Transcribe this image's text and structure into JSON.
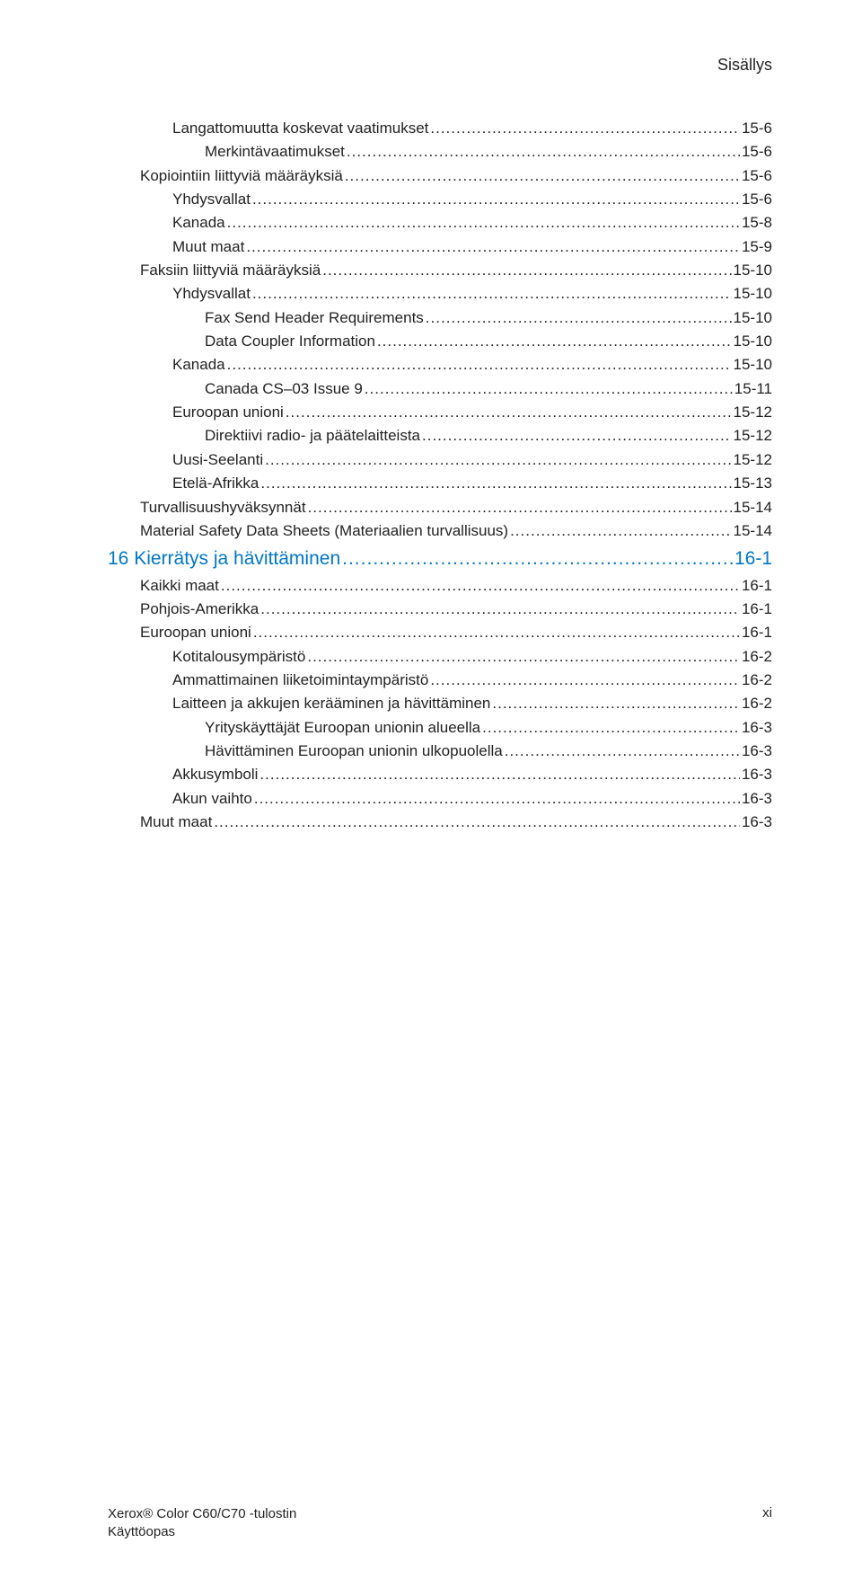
{
  "header": {
    "title": "Sisällys"
  },
  "colors": {
    "accent": "#0077c8",
    "text": "#222222",
    "bg": "#ffffff"
  },
  "toc": {
    "entries": [
      {
        "level": 2,
        "label": "Langattomuutta koskevat vaatimukset",
        "page": "15-6"
      },
      {
        "level": 3,
        "label": "Merkintävaatimukset",
        "page": "15-6"
      },
      {
        "level": 1,
        "label": "Kopiointiin liittyviä määräyksiä",
        "page": "15-6"
      },
      {
        "level": 2,
        "label": "Yhdysvallat",
        "page": "15-6"
      },
      {
        "level": 2,
        "label": "Kanada",
        "page": "15-8"
      },
      {
        "level": 2,
        "label": "Muut maat",
        "page": "15-9"
      },
      {
        "level": 1,
        "label": "Faksiin liittyviä määräyksiä",
        "page": "15-10"
      },
      {
        "level": 2,
        "label": "Yhdysvallat",
        "page": "15-10"
      },
      {
        "level": 3,
        "label": "Fax Send Header Requirements",
        "page": "15-10"
      },
      {
        "level": 3,
        "label": "Data Coupler Information",
        "page": "15-10"
      },
      {
        "level": 2,
        "label": "Kanada",
        "page": "15-10"
      },
      {
        "level": 3,
        "label": "Canada CS–03 Issue 9",
        "page": "15-11"
      },
      {
        "level": 2,
        "label": "Euroopan unioni",
        "page": "15-12"
      },
      {
        "level": 3,
        "label": "Direktiivi radio- ja päätelaitteista",
        "page": "15-12"
      },
      {
        "level": 2,
        "label": "Uusi-Seelanti",
        "page": "15-12"
      },
      {
        "level": 2,
        "label": "Etelä-Afrikka",
        "page": "15-13"
      },
      {
        "level": 1,
        "label": "Turvallisuushyväksynnät",
        "page": "15-14"
      },
      {
        "level": 1,
        "label": "Material Safety Data Sheets (Materiaalien turvallisuus)",
        "page": "15-14"
      },
      {
        "level": 0,
        "chapter": true,
        "label": "16 Kierrätys ja hävittäminen",
        "page": "16-1"
      },
      {
        "level": 1,
        "label": "Kaikki maat",
        "page": "16-1"
      },
      {
        "level": 1,
        "label": "Pohjois-Amerikka",
        "page": "16-1"
      },
      {
        "level": 1,
        "label": "Euroopan unioni",
        "page": "16-1"
      },
      {
        "level": 2,
        "label": "Kotitalousympäristö",
        "page": "16-2"
      },
      {
        "level": 2,
        "label": "Ammattimainen liiketoimintaympäristö",
        "page": "16-2"
      },
      {
        "level": 2,
        "label": "Laitteen ja akkujen kerääminen ja hävittäminen",
        "page": "16-2"
      },
      {
        "level": 3,
        "label": "Yrityskäyttäjät Euroopan unionin alueella",
        "page": "16-3"
      },
      {
        "level": 3,
        "label": "Hävittäminen Euroopan unionin ulkopuolella",
        "page": "16-3"
      },
      {
        "level": 2,
        "label": "Akkusymboli",
        "page": "16-3"
      },
      {
        "level": 2,
        "label": "Akun vaihto",
        "page": "16-3"
      },
      {
        "level": 1,
        "label": "Muut maat",
        "page": "16-3"
      }
    ]
  },
  "footer": {
    "line1": "Xerox® Color C60/C70 -tulostin",
    "line2": "Käyttöopas",
    "pagenum": "xi"
  }
}
